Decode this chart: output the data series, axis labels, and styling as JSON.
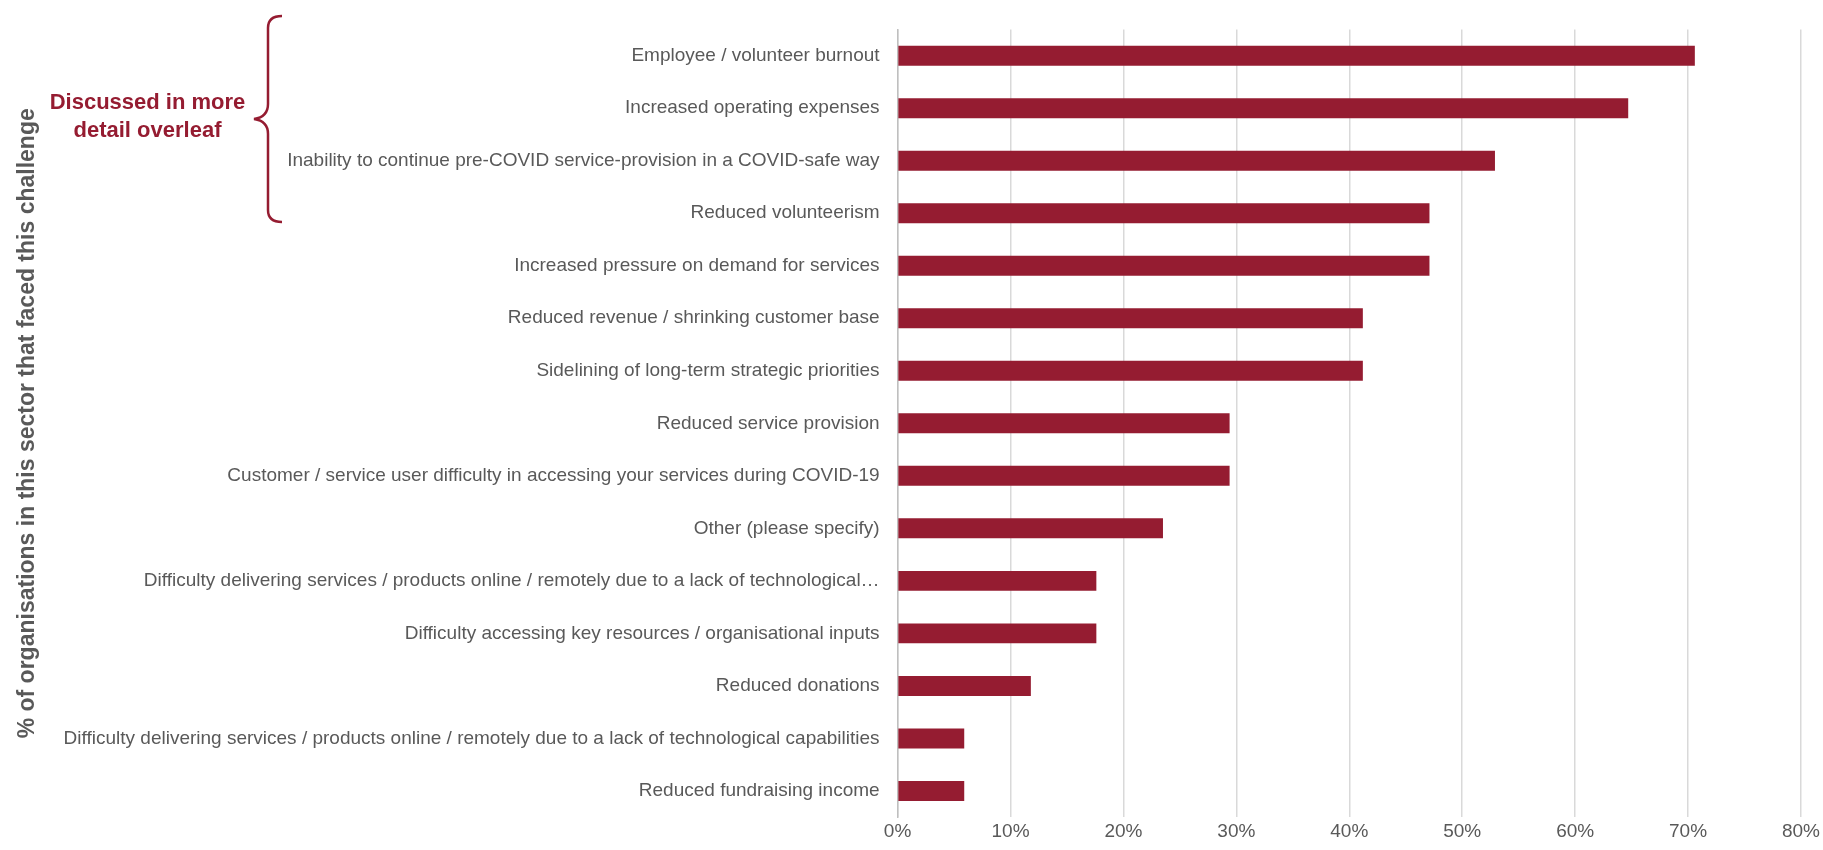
{
  "chart_data": {
    "type": "bar",
    "orientation": "horizontal",
    "ylabel": "% of organisations in this sector that faced this challenge",
    "categories": [
      "Employee / volunteer burnout",
      "Increased operating expenses",
      "Inability to continue pre-COVID service-provision in a COVID-safe way",
      "Reduced volunteerism",
      "Increased pressure on demand for services",
      "Reduced revenue / shrinking customer base",
      "Sidelining of long-term strategic priorities",
      "Reduced service provision",
      "Customer / service user difficulty in accessing your services during COVID-19",
      "Other (please specify)",
      "Difficulty delivering services / products online / remotely due to a lack of technological…",
      "Difficulty accessing key resources / organisational inputs",
      "Reduced donations",
      "Difficulty delivering services / products online / remotely due to a lack of technological capabilities",
      "Reduced fundraising income"
    ],
    "values": [
      70.6,
      64.7,
      52.9,
      47.1,
      47.1,
      41.2,
      41.2,
      29.4,
      29.4,
      23.5,
      17.6,
      17.6,
      11.8,
      5.9,
      5.9
    ],
    "color": "#951c31",
    "xlim": [
      0,
      80
    ],
    "xticks": [
      {
        "value": 0,
        "label": "0%"
      },
      {
        "value": 10,
        "label": "10%"
      },
      {
        "value": 20,
        "label": "20%"
      },
      {
        "value": 30,
        "label": "30%"
      },
      {
        "value": 40,
        "label": "40%"
      },
      {
        "value": 50,
        "label": "50%"
      },
      {
        "value": 60,
        "label": "60%"
      },
      {
        "value": 70,
        "label": "70%"
      },
      {
        "value": 80,
        "label": "80%"
      }
    ],
    "grid": "x",
    "legend": false,
    "annotations": [
      "Discussed in more detail overleaf"
    ]
  }
}
